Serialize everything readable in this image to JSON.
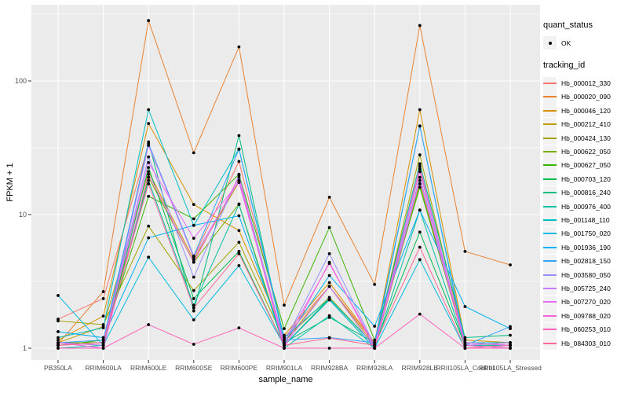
{
  "figure": {
    "background": "#FFFFFF",
    "panel_background": "#EBEBEB",
    "gridline_color": "#FFFFFF",
    "tick_color": "#333333",
    "tick_label_color": "#4D4D4D",
    "axis_title_color": "#000000",
    "legend_key_background": "#F2F2F2"
  },
  "chart_data": {
    "type": "line",
    "title": "",
    "xlabel": "sample_name",
    "ylabel": "FPKM + 1",
    "y_scale": "log10",
    "y_ticks": [
      "1",
      "10",
      "100"
    ],
    "y_tick_values": [
      1,
      10,
      100
    ],
    "y_minor_tick_values": [
      3.162,
      31.62,
      316.2
    ],
    "ylim": [
      0.93,
      380
    ],
    "grid": true,
    "legend_position": "right",
    "point_color": "#000000",
    "categories": [
      "PB350LA",
      "RRIM600LA",
      "RRIM600LE",
      "RRIM600SE",
      "RRIM600PE",
      "RRIM901LA",
      "RRIM928BA",
      "RRIM928LA",
      "RRIM928LE",
      "RRII105LA_Control",
      "RRII105LA_Stressed"
    ],
    "series": [
      {
        "name": "Hb_000012_330",
        "color": "#F8766D",
        "values": [
          1.65,
          2.35,
          33,
          4.8,
          25,
          1.2,
          2.9,
          1.1,
          22,
          1.1,
          1.05
        ]
      },
      {
        "name": "Hb_000020_090",
        "color": "#EA8331",
        "values": [
          1.08,
          2.65,
          283,
          29,
          180,
          2.1,
          13.5,
          3.0,
          260,
          5.3,
          4.2
        ]
      },
      {
        "name": "Hb_000046_120",
        "color": "#D89000",
        "values": [
          1.15,
          1.74,
          48,
          11.9,
          7.6,
          1.25,
          3.1,
          1.1,
          61,
          1.15,
          1.1
        ]
      },
      {
        "name": "Hb_000212_410",
        "color": "#C09B00",
        "values": [
          1.1,
          1.45,
          21,
          4.6,
          17.5,
          1.1,
          2.9,
          1.05,
          21,
          1.1,
          1.05
        ]
      },
      {
        "name": "Hb_000424_130",
        "color": "#A3A500",
        "values": [
          1.6,
          1.5,
          8.2,
          2.7,
          6.2,
          1.15,
          2.4,
          1.05,
          28,
          1.1,
          1.1
        ]
      },
      {
        "name": "Hb_000622_050",
        "color": "#7CAE00",
        "values": [
          1.1,
          1.1,
          19,
          4.4,
          12,
          1.05,
          2.3,
          1.0,
          17,
          1.05,
          1.05
        ]
      },
      {
        "name": "Hb_000627_050",
        "color": "#39B600",
        "values": [
          1.05,
          1.15,
          13.7,
          9.3,
          20,
          1.4,
          8.0,
          1.15,
          16,
          1.1,
          1.05
        ]
      },
      {
        "name": "Hb_000703_120",
        "color": "#00BB4E",
        "values": [
          1.1,
          1.05,
          22.5,
          2.35,
          5.3,
          1.05,
          2.35,
          1.05,
          7.4,
          1.05,
          1.0
        ]
      },
      {
        "name": "Hb_000816_240",
        "color": "#00BF7D",
        "values": [
          1.05,
          1.1,
          35,
          1.9,
          39,
          1.1,
          1.7,
          1.1,
          24,
          1.2,
          1.25
        ]
      },
      {
        "name": "Hb_000976_400",
        "color": "#00C1A3",
        "values": [
          1.0,
          1.05,
          18,
          2.1,
          11.9,
          1.0,
          1.75,
          1.0,
          10.8,
          1.05,
          1.05
        ]
      },
      {
        "name": "Hb_001148_110",
        "color": "#00BFC4",
        "values": [
          1.2,
          1.42,
          61,
          8.3,
          31,
          1.2,
          2.35,
          1.05,
          46,
          1.1,
          1.1
        ]
      },
      {
        "name": "Hb_001750_020",
        "color": "#00BAE0",
        "values": [
          2.48,
          1.05,
          4.8,
          1.63,
          4.15,
          1.05,
          2.3,
          1.0,
          4.6,
          1.0,
          1.05
        ]
      },
      {
        "name": "Hb_001936_190",
        "color": "#00B0F6",
        "values": [
          1.33,
          1.2,
          6.7,
          8.3,
          9.8,
          1.1,
          3.5,
          1.46,
          10.8,
          2.05,
          1.4
        ]
      },
      {
        "name": "Hb_002818_150",
        "color": "#35A2FF",
        "values": [
          1.1,
          1.15,
          34,
          4.9,
          30.8,
          1.15,
          1.2,
          1.1,
          46,
          1.05,
          1.45
        ]
      },
      {
        "name": "Hb_003580_050",
        "color": "#9590FF",
        "values": [
          1.05,
          1.1,
          27,
          3.4,
          19.7,
          1.1,
          5.1,
          1.05,
          19,
          1.1,
          1.05
        ]
      },
      {
        "name": "Hb_005725_240",
        "color": "#C77CFF",
        "values": [
          1.1,
          1.05,
          33,
          4.8,
          18,
          1.05,
          2.9,
          1.0,
          23,
          1.05,
          1.1
        ]
      },
      {
        "name": "Hb_007270_020",
        "color": "#E76BF3",
        "values": [
          1.05,
          1.1,
          24.5,
          6.65,
          17.4,
          1.1,
          4.3,
          1.05,
          21,
          1.1,
          1.05
        ]
      },
      {
        "name": "Hb_009788_020",
        "color": "#FA62DB",
        "values": [
          1.1,
          1.0,
          20,
          4.4,
          19,
          1.0,
          4.4,
          1.0,
          18,
          1.05,
          1.0
        ]
      },
      {
        "name": "Hb_060253_010",
        "color": "#FF62BC",
        "values": [
          1.0,
          1.0,
          1.5,
          1.07,
          1.42,
          1.0,
          1.0,
          1.0,
          1.8,
          1.0,
          1.0
        ]
      },
      {
        "name": "Hb_084303_010",
        "color": "#FF6A98",
        "values": [
          1.05,
          1.1,
          17,
          2.0,
          5.1,
          1.05,
          1.19,
          1.05,
          5.7,
          1.0,
          1.05
        ]
      }
    ],
    "legend": {
      "quant_status": {
        "title": "quant_status",
        "items": [
          {
            "label": "OK",
            "marker": "point",
            "color": "#000000"
          }
        ]
      },
      "tracking_id_title": "tracking_id"
    }
  }
}
